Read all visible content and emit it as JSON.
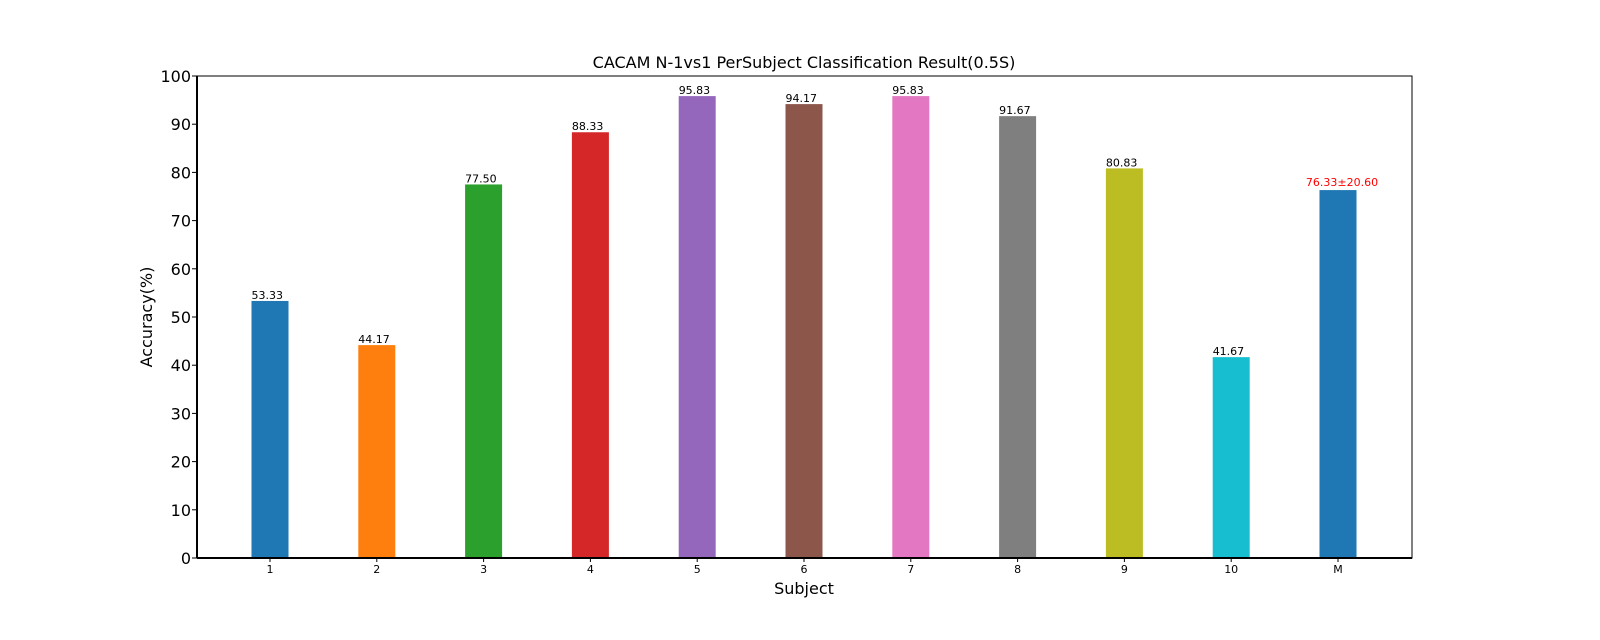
{
  "chart_data": {
    "type": "bar",
    "title": "CACAM N-1vs1 PerSubject Classification Result(0.5S)",
    "xlabel": "Subject",
    "ylabel": "Accuracy(%)",
    "ylim": [
      0,
      100
    ],
    "yticks": [
      0,
      10,
      20,
      30,
      40,
      50,
      60,
      70,
      80,
      90,
      100
    ],
    "grid": false,
    "legend": "none",
    "categories": [
      "1",
      "2",
      "3",
      "4",
      "5",
      "6",
      "7",
      "8",
      "9",
      "10",
      "M"
    ],
    "values": [
      53.33,
      44.17,
      77.5,
      88.33,
      95.83,
      94.17,
      95.83,
      91.67,
      80.83,
      41.67,
      76.33
    ],
    "value_labels": [
      "53.33",
      "44.17",
      "77.50",
      "88.33",
      "95.83",
      "94.17",
      "95.83",
      "91.67",
      "80.83",
      "41.67",
      "76.33±20.60"
    ],
    "colors": [
      "#1f77b4",
      "#ff7f0e",
      "#2ca02c",
      "#d62728",
      "#9467bd",
      "#8c564b",
      "#e377c2",
      "#7f7f7f",
      "#bcbd22",
      "#17becf",
      "#1f77b4"
    ],
    "label_colors": [
      "#000000",
      "#000000",
      "#000000",
      "#000000",
      "#000000",
      "#000000",
      "#000000",
      "#000000",
      "#000000",
      "#000000",
      "#ff0000"
    ]
  }
}
